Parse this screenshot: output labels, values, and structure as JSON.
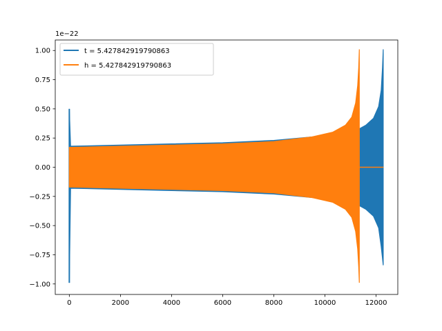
{
  "chart_data": {
    "type": "line",
    "title": "",
    "xlabel": "",
    "ylabel": "",
    "offset_text": "1e−22",
    "xlim": [
      -550,
      12850
    ],
    "ylim": [
      -1.09,
      1.09
    ],
    "x_ticks": [
      0,
      2000,
      4000,
      6000,
      8000,
      10000,
      12000
    ],
    "x_tick_labels": [
      "0",
      "2000",
      "4000",
      "6000",
      "8000",
      "10000",
      "12000"
    ],
    "y_ticks": [
      1.0,
      0.75,
      0.5,
      0.25,
      0.0,
      -0.25,
      -0.5,
      -0.75,
      -1.0
    ],
    "y_tick_labels": [
      "1.00",
      "0.75",
      "0.50",
      "0.25",
      "0.00",
      "−0.25",
      "−0.50",
      "−0.75",
      "−1.00"
    ],
    "grid": false,
    "legend_position": "upper-left",
    "series": [
      {
        "name": "t = 5.427842919790863",
        "color": "#1f77b4",
        "envelope_upper": [
          [
            0,
            0.5
          ],
          [
            50,
            0.18
          ],
          [
            2000,
            0.19
          ],
          [
            4000,
            0.2
          ],
          [
            6000,
            0.21
          ],
          [
            8000,
            0.23
          ],
          [
            10000,
            0.27
          ],
          [
            11000,
            0.31
          ],
          [
            11350,
            0.33
          ],
          [
            11600,
            0.36
          ],
          [
            11900,
            0.42
          ],
          [
            12100,
            0.52
          ],
          [
            12200,
            0.66
          ],
          [
            12250,
            0.85
          ],
          [
            12280,
            1.01
          ]
        ],
        "envelope_lower": [
          [
            0,
            -0.99
          ],
          [
            50,
            -0.18
          ],
          [
            2000,
            -0.19
          ],
          [
            4000,
            -0.2
          ],
          [
            6000,
            -0.21
          ],
          [
            8000,
            -0.23
          ],
          [
            10000,
            -0.27
          ],
          [
            11000,
            -0.31
          ],
          [
            11350,
            -0.33
          ],
          [
            11600,
            -0.36
          ],
          [
            11900,
            -0.42
          ],
          [
            12100,
            -0.52
          ],
          [
            12200,
            -0.68
          ],
          [
            12280,
            -0.84
          ]
        ],
        "end_x": 12290
      },
      {
        "name": "h = 5.427842919790863",
        "color": "#ff7f0e",
        "envelope_upper": [
          [
            0,
            0.17
          ],
          [
            2000,
            0.18
          ],
          [
            4000,
            0.19
          ],
          [
            6000,
            0.2
          ],
          [
            8000,
            0.22
          ],
          [
            9500,
            0.26
          ],
          [
            10300,
            0.3
          ],
          [
            10800,
            0.36
          ],
          [
            11050,
            0.43
          ],
          [
            11200,
            0.55
          ],
          [
            11280,
            0.7
          ],
          [
            11320,
            0.85
          ],
          [
            11345,
            1.01
          ]
        ],
        "envelope_lower": [
          [
            0,
            -0.17
          ],
          [
            2000,
            -0.18
          ],
          [
            4000,
            -0.19
          ],
          [
            6000,
            -0.2
          ],
          [
            8000,
            -0.22
          ],
          [
            9500,
            -0.26
          ],
          [
            10300,
            -0.3
          ],
          [
            10800,
            -0.36
          ],
          [
            11050,
            -0.43
          ],
          [
            11200,
            -0.55
          ],
          [
            11280,
            -0.7
          ],
          [
            11320,
            -0.85
          ],
          [
            11345,
            -0.99
          ]
        ],
        "flat_after": [
          11350,
          12290
        ]
      }
    ]
  }
}
